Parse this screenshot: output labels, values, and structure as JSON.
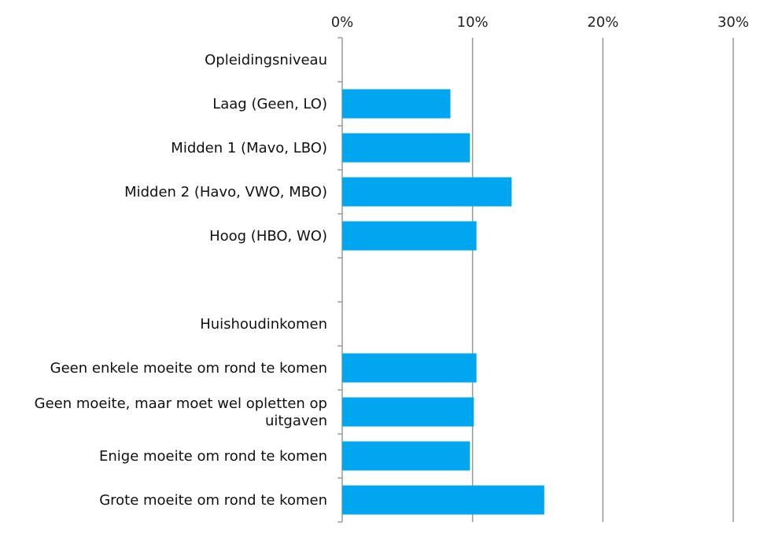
{
  "chart_data": {
    "type": "bar",
    "orientation": "horizontal",
    "categories": [
      [
        "Opleidingsniveau"
      ],
      [
        "Laag (Geen, LO)"
      ],
      [
        "Midden 1 (Mavo, LBO)"
      ],
      [
        "Midden 2 (Havo, VWO, MBO)"
      ],
      [
        "Hoog (HBO, WO)"
      ],
      [
        ""
      ],
      [
        "Huishoudinkomen"
      ],
      [
        "Geen enkele moeite om rond te komen"
      ],
      [
        "Geen moeite, maar moet wel opletten op",
        "uitgaven"
      ],
      [
        "Enige moeite om rond te komen"
      ],
      [
        "Grote moeite om rond te komen"
      ]
    ],
    "values": [
      null,
      8.3,
      9.8,
      13.0,
      10.3,
      null,
      null,
      10.3,
      10.1,
      9.8,
      15.5
    ],
    "xlim": [
      0,
      30
    ],
    "xticks": [
      0,
      10,
      20,
      30
    ],
    "xtick_labels": [
      "0%",
      "10%",
      "20%",
      "30%"
    ],
    "x_axis_position": "top",
    "grid": true,
    "bar_color": "#00a6f0",
    "grid_color": "#9a9a9a"
  }
}
